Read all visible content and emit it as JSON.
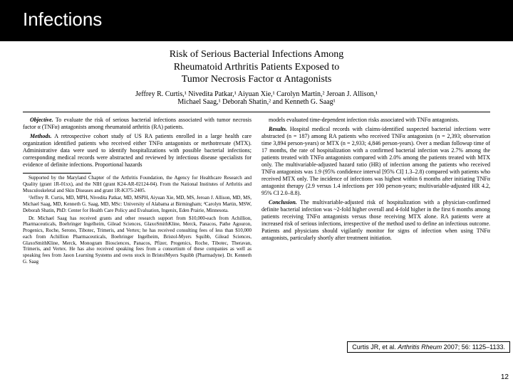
{
  "slide": {
    "title": "Infections",
    "page_number": "12"
  },
  "paper": {
    "title_l1": "Risk of Serious Bacterial Infections Among",
    "title_l2": "Rheumatoid Arthritis Patients Exposed to",
    "title_l3": "Tumor Necrosis Factor α Antagonists",
    "authors_l1": "Jeffrey R. Curtis,¹ Nivedita Patkar,¹ Aiyuan Xie,¹ Carolyn Martin,² Jeroan J. Allison,¹",
    "authors_l2": "Michael Saag,¹ Deborah Shatin,² and Kenneth G. Saag¹"
  },
  "left_col": {
    "p1_lead": "Objective.",
    "p1": " To evaluate the risk of serious bacterial infections associated with tumor necrosis factor α (TNFα) antagonists among rheumatoid arthritis (RA) patients.",
    "p2_lead": "Methods.",
    "p2": " A retrospective cohort study of US RA patients enrolled in a large health care organization identified patients who received either TNFα antagonists or methotrexate (MTX). Administrative data were used to identify hospitalizations with possible bacterial infections; corresponding medical records were abstracted and reviewed by infectious disease specialists for evidence of definite infections. Proportional hazards"
  },
  "right_col": {
    "p1": "models evaluated time-dependent infection risks associated with TNFα antagonists.",
    "p2_lead": "Results.",
    "p2": " Hospital medical records with claims-identified suspected bacterial infections were abstracted (n = 187) among RA patients who received TNFα antagonists (n = 2,393; observation time 3,894 person-years) or MTX (n = 2,933; 4,846 person-years). Over a median followup time of 17 months, the rate of hospitalization with a confirmed bacterial infection was 2.7% among the patients treated with TNFα antagonists compared with 2.0% among the patients treated with MTX only. The multivariable-adjusted hazard ratio (HR) of infection among the patients who received TNFα antagonists was 1.9 (95% confidence interval [95% CI] 1.3–2.8) compared with patients who received MTX only. The incidence of infections was highest within 6 months after initiating TNFα antagonist therapy (2.9 versus 1.4 infections per 100 person-years; multivariable-adjusted HR 4.2, 95% CI 2.0–8.8).",
    "p3_lead": "Conclusion.",
    "p3": " The multivariable-adjusted risk of hospitalization with a physician-confirmed definite bacterial infection was ~2-fold higher overall and 4-fold higher in the first 6 months among patients receiving TNFα antagonists versus those receiving MTX alone. RA patients were at increased risk of serious infections, irrespective of the method used to define an infectious outcome. Patients and physicians should vigilantly monitor for signs of infection when using TNFα antagonists, particularly shortly after treatment initiation."
  },
  "footnotes": {
    "f1": "Supported by the Maryland Chapter of the Arthritis Foundation, the Agency for Healthcare Research and Quality (grant 1R-01xx), and the NIH (grant K24-AR-02124-04). From the National Institutes of Arthritis and Musculoskeletal and Skin Diseases and grant 1R-K375-2405.",
    "f2": "¹Jeffrey R. Curtis, MD, MPH, Nivedita Patkar, MD, MSPH, Aiyuan Xie, MD, MS, Jeroan J. Allison, MD, MS, Michael Saag, MD, Kenneth G. Saag, MD, MSc: University of Alabama at Birmingham; ²Carolyn Martin, MSW, Deborah Shatin, PhD: Center for Health Care Policy and Evaluation, Ingenix, Eden Prairie, Minnesota.",
    "f3": "Dr. Michael Saag has received grants and other research support from $10,000-each from Achillion, Pharmaceuticals, Boehringer Ingelheim, Gilead Sciences, GlaxoSmithKline, Merck, Panacos, Pathe Agouron, Progenics, Roche, Serono, Tibotec, Trimeris, and Vertex; he has received consulting fees of less than $10,000 each from Achillion Pharmaceuticals, Boehringer Ingelheim, Bristol-Myers Squibb, Gilead Sciences, GlaxoSmithKline, Merck, Monogram Biosciences, Panacos, Pfizer, Progenics, Roche, Tibotec, Theravan, Trimeris, and Vertex. He has also received speaking fees from a consortium of these companies as well as speaking fees from Jason Learning Systems and owns stock in BristolMyers Squibb (Pharmadyne). Dr. Kenneth G. Saag"
  },
  "citation": {
    "author": "Curtis JR, et al. ",
    "journal": "Arthritis Rheum ",
    "ref": "2007; 56: 1125–1133."
  },
  "colors": {
    "title_bg": "#000000",
    "title_fg": "#ffffff",
    "body_bg": "#ffffff",
    "text": "#000000",
    "border": "#000000"
  }
}
